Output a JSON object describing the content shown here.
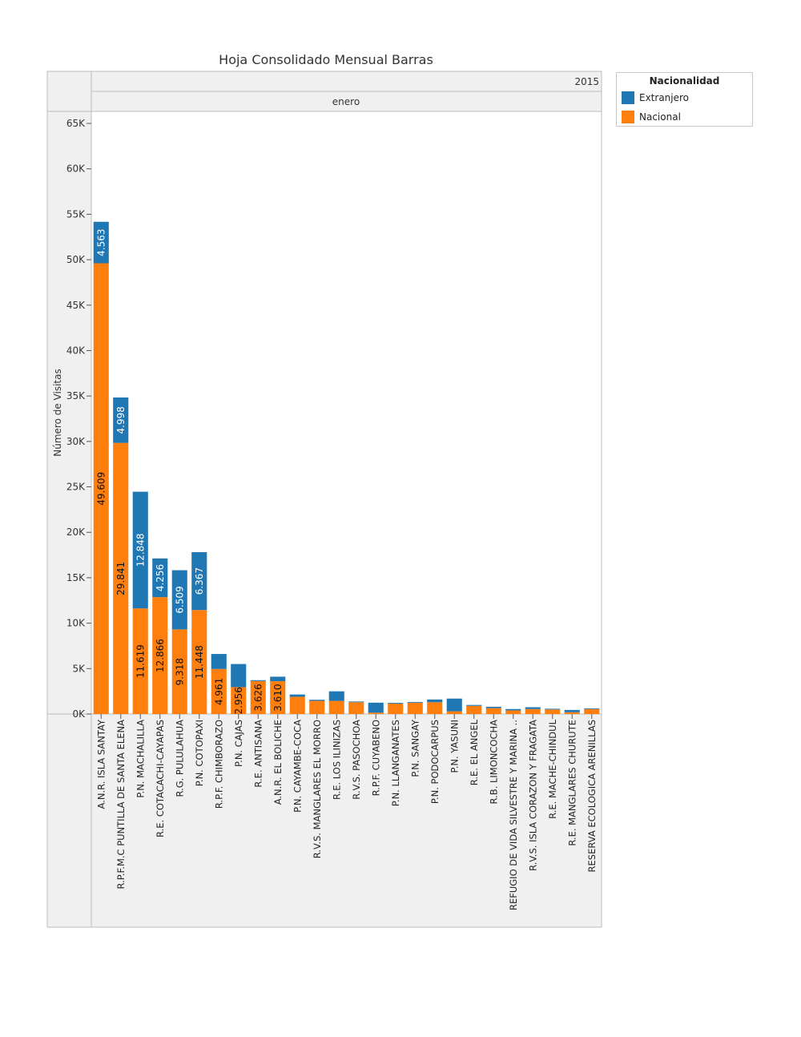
{
  "chart_data": {
    "type": "bar",
    "stacked": true,
    "title": "Hoja Consolidado Mensual Barras",
    "year_header": "2015",
    "month_header": "enero",
    "ylabel": "Número de Visitas",
    "xlabel": "",
    "ylim": [
      0,
      65000
    ],
    "yticks": [
      0,
      5000,
      10000,
      15000,
      20000,
      25000,
      30000,
      35000,
      40000,
      45000,
      50000,
      55000,
      60000,
      65000
    ],
    "ytick_labels": [
      "0K",
      "5K",
      "10K",
      "15K",
      "20K",
      "25K",
      "30K",
      "35K",
      "40K",
      "45K",
      "50K",
      "55K",
      "60K",
      "65K"
    ],
    "grid": false,
    "legend": {
      "title": "Nacionalidad",
      "position": "top-right",
      "entries": [
        {
          "name": "Extranjero",
          "color": "#1f77b4"
        },
        {
          "name": "Nacional",
          "color": "#ff7f0e"
        }
      ]
    },
    "categories": [
      "A.N.R. ISLA SANTAY",
      "R.P.F.M.C PUNTILLA DE SANTA ELENA",
      "P.N. MACHALILLA",
      "R.E. COTACACHI-CAYAPAS",
      "R.G. PULULAHUA",
      "P.N. COTOPAXI",
      "R.P.F. CHIMBORAZO",
      "P.N. CAJAS",
      "R.E. ANTISANA",
      "A.N.R. EL BOLICHE",
      "P.N. CAYAMBE-COCA",
      "R.V.S. MANGLARES EL MORRO",
      "R.E. LOS ILINIZAS",
      "R.V.S. PASOCHOA",
      "R.P.F. CUYABENO",
      "P.N. LLANGANATES",
      "P.N. SANGAY",
      "P.N. PODOCARPUS",
      "P.N. YASUNI",
      "R.E. EL ANGEL",
      "R.B. LIMONCOCHA",
      "REFUGIO DE VIDA SILVESTRE Y MARINA ..",
      "R.V.S. ISLA CORAZON Y FRAGATA",
      "R.E. MACHE-CHINDUL",
      "R.E. MANGLARES CHURUTE",
      "RESERVA ECOLOGICA ARENILLAS"
    ],
    "series": [
      {
        "name": "Nacional",
        "color": "#ff7f0e",
        "values": [
          49609,
          29841,
          11619,
          12866,
          9318,
          11448,
          4961,
          2956,
          3626,
          3610,
          1900,
          1450,
          1450,
          1300,
          150,
          1150,
          1250,
          1300,
          300,
          900,
          650,
          400,
          550,
          500,
          200,
          550
        ],
        "labels": [
          "49.609",
          "29.841",
          "11.619",
          "12.866",
          "9.318",
          "11.448",
          "4.961",
          "2.956",
          "3.626",
          "3.610",
          "",
          "",
          "",
          "",
          "",
          "",
          "",
          "",
          "",
          "",
          "",
          "",
          "",
          "",
          "",
          ""
        ]
      },
      {
        "name": "Extranjero",
        "color": "#1f77b4",
        "values": [
          4563,
          4998,
          12848,
          4256,
          6509,
          6367,
          1650,
          2550,
          100,
          500,
          250,
          120,
          1050,
          80,
          1100,
          80,
          80,
          300,
          1400,
          100,
          150,
          150,
          200,
          80,
          250,
          80
        ],
        "labels": [
          "4.563",
          "4.998",
          "12.848",
          "4.256",
          "6.509",
          "6.367",
          "",
          "",
          "",
          "",
          "",
          "",
          "",
          "",
          "",
          "",
          "",
          "",
          "",
          "",
          "",
          "",
          "",
          "",
          "",
          ""
        ]
      }
    ]
  }
}
